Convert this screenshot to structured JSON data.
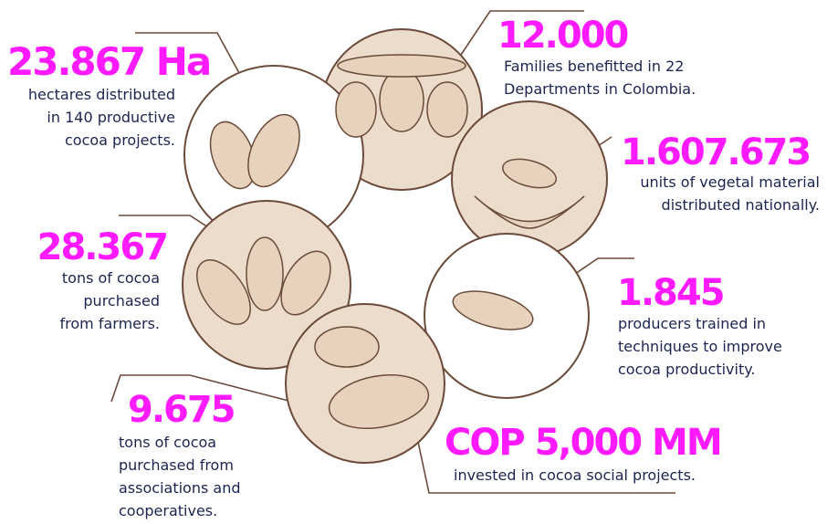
{
  "stats": [
    {
      "value": "23.867 Ha",
      "description": [
        "hectares distributed",
        "in 140 productive",
        "cocoa projects."
      ]
    },
    {
      "value": "12.000",
      "description": [
        "Families benefitted in 22",
        "Departments in Colombia."
      ]
    },
    {
      "value": "1.607.673",
      "description": [
        "units of vegetal material",
        "distributed nationally."
      ]
    },
    {
      "value": "28.367",
      "description": [
        "tons of cocoa",
        "purchased",
        "from farmers."
      ]
    },
    {
      "value": "1.845",
      "description": [
        "producers trained in",
        "techniques to improve",
        "cocoa productivity."
      ]
    },
    {
      "value": "9.675",
      "description": [
        "tons of cocoa",
        "purchased from",
        "associations and",
        "cooperatives."
      ]
    },
    {
      "value": "COP 5,000 MM",
      "description": [
        "invested in cocoa social projects."
      ]
    }
  ]
}
